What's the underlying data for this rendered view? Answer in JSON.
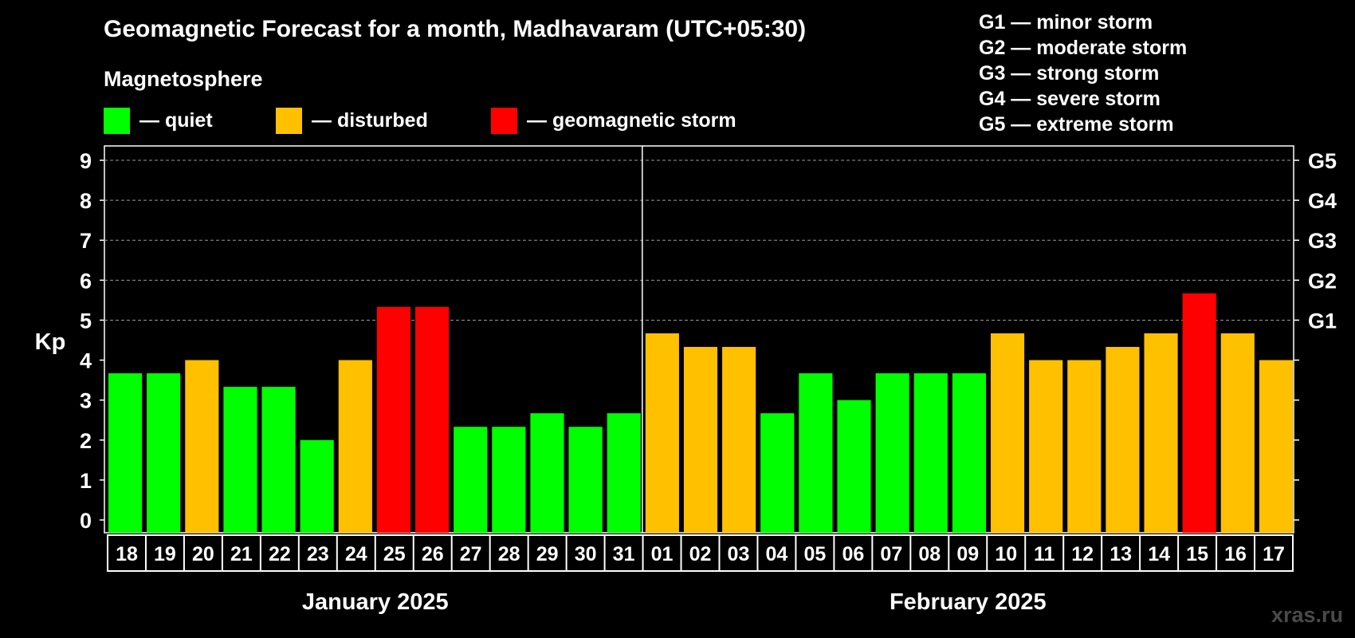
{
  "chart_data": {
    "type": "bar",
    "title": "Geomagnetic Forecast for a month, Madhavaram (UTC+05:30)",
    "subtitle": "Magnetosphere",
    "ylabel": "Kp",
    "ylim": [
      0,
      9
    ],
    "yticks": [
      "0",
      "1",
      "2",
      "3",
      "4",
      "5",
      "6",
      "7",
      "8",
      "9"
    ],
    "right_axis_labels": [
      {
        "kp": 5,
        "label": "G1"
      },
      {
        "kp": 6,
        "label": "G2"
      },
      {
        "kp": 7,
        "label": "G3"
      },
      {
        "kp": 8,
        "label": "G4"
      },
      {
        "kp": 9,
        "label": "G5"
      }
    ],
    "grid": "dashed at Kp 5–9",
    "categories": [
      "18",
      "19",
      "20",
      "21",
      "22",
      "23",
      "24",
      "25",
      "26",
      "27",
      "28",
      "29",
      "30",
      "31",
      "01",
      "02",
      "03",
      "04",
      "05",
      "06",
      "07",
      "08",
      "09",
      "10",
      "11",
      "12",
      "13",
      "14",
      "15",
      "16",
      "17"
    ],
    "values": [
      3.67,
      3.67,
      4,
      3.33,
      3.33,
      2,
      4,
      5.33,
      5.33,
      2.33,
      2.33,
      2.67,
      2.33,
      2.67,
      4.67,
      4.33,
      4.33,
      2.67,
      3.67,
      3,
      3.67,
      3.67,
      3.67,
      4.67,
      4,
      4,
      4.33,
      4.67,
      5.67,
      4.67,
      4
    ],
    "status": [
      "quiet",
      "quiet",
      "disturbed",
      "quiet",
      "quiet",
      "quiet",
      "disturbed",
      "storm",
      "storm",
      "quiet",
      "quiet",
      "quiet",
      "quiet",
      "quiet",
      "disturbed",
      "disturbed",
      "disturbed",
      "quiet",
      "quiet",
      "quiet",
      "quiet",
      "quiet",
      "quiet",
      "disturbed",
      "disturbed",
      "disturbed",
      "disturbed",
      "disturbed",
      "storm",
      "disturbed",
      "disturbed"
    ],
    "months": [
      {
        "label": "January 2025",
        "count": 14
      },
      {
        "label": "February 2025",
        "count": 17
      }
    ],
    "legend": [
      {
        "key": "quiet",
        "label": "— quiet",
        "color": "#00ff00"
      },
      {
        "key": "disturbed",
        "label": "— disturbed",
        "color": "#ffc000"
      },
      {
        "key": "storm",
        "label": "— geomagnetic storm",
        "color": "#ff0000"
      }
    ],
    "storm_scale": [
      "G1 — minor storm",
      "G2 — moderate storm",
      "G3 — strong storm",
      "G4 — severe storm",
      "G5 — extreme storm"
    ]
  },
  "watermark": "xras.ru",
  "colors": {
    "background": "#000000",
    "axis": "#ffffff",
    "grid": "#888888",
    "watermark": "#4a4a4a"
  }
}
